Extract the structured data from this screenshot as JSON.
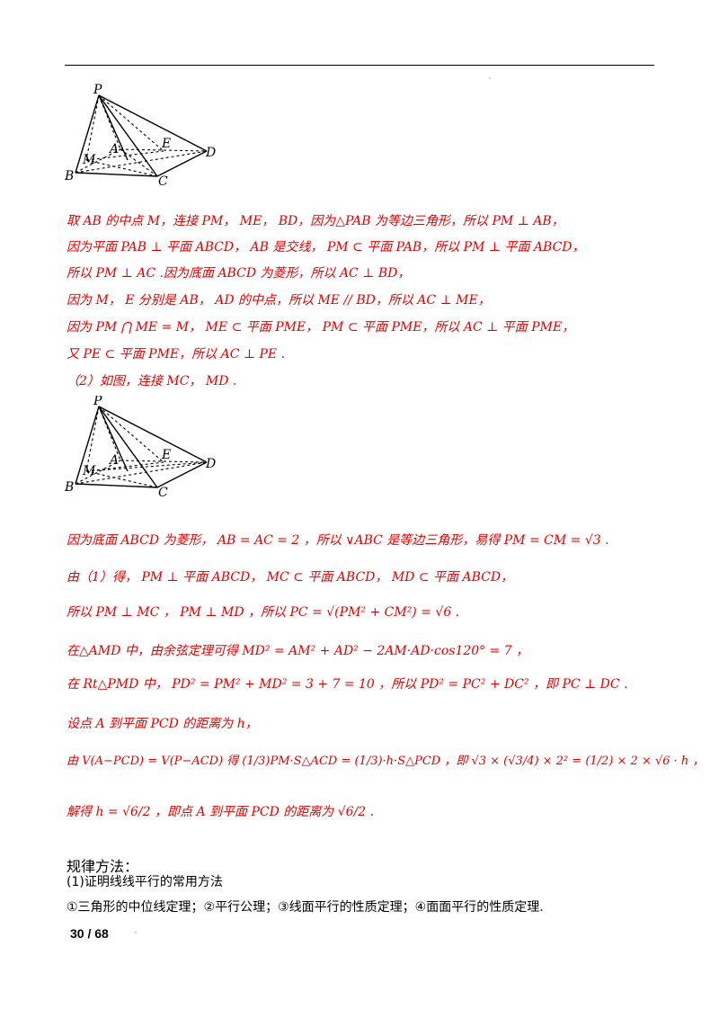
{
  "figure_labels": [
    "P",
    "A",
    "E",
    "D",
    "M",
    "B",
    "C"
  ],
  "part1": {
    "lines": [
      "取 AB 的中点 M，连接 PM， ME， BD，因为△PAB 为等边三角形，所以 PM ⊥ AB，",
      "因为平面 PAB ⊥ 平面 ABCD， AB 是交线， PM ⊂ 平面 PAB，所以 PM ⊥ 平面 ABCD，",
      "所以 PM ⊥ AC .因为底面 ABCD 为菱形，所以 AC ⊥ BD，",
      "因为 M， E 分别是 AB， AD 的中点，所以 ME // BD，所以 AC ⊥ ME，",
      "因为 PM ⋂ ME = M， ME ⊂ 平面 PME， PM ⊂ 平面 PME，所以 AC ⊥ 平面 PME，",
      "又 PE ⊂ 平面 PME，所以 AC ⊥ PE ."
    ]
  },
  "part2": {
    "intro": "（2）如图，连接 MC， MD .",
    "lines": [
      "因为底面 ABCD 为菱形， AB = AC = 2 ，所以 ∨ABC 是等边三角形，易得 PM = CM = √3 .",
      "由（1）得， PM ⊥ 平面 ABCD， MC ⊂ 平面 ABCD， MD ⊂ 平面 ABCD，",
      "所以 PM ⊥ MC ， PM ⊥ MD ，所以 PC = √(PM² + CM²) = √6 .",
      "在△AMD 中，由余弦定理可得 MD² = AM² + AD² − 2AM·AD·cos120° = 7 ，",
      "在 Rt△PMD 中， PD² = PM² + MD² = 3 + 7 = 10 ，所以 PD² = PC² + DC² ，即 PC ⊥ DC .",
      "设点 A 到平面 PCD 的距离为 h，",
      "由 V(A−PCD) = V(P−ACD) 得 (1/3)PM·S△ACD = (1/3)·h·S△PCD ，即 √3 × (√3/4) × 2² = (1/2) × 2 × √6 · h ，",
      "解得 h = √6/2 ，即点 A 到平面 PCD 的距离为 √6/2 ."
    ]
  },
  "method": {
    "title": "规律方法：",
    "subtitle": "(1)证明线线平行的常用方法",
    "items": "①三角形的中位线定理；②平行公理；③线面平行的性质定理；④面面平行的性质定理."
  },
  "page_number": "30 / 68"
}
